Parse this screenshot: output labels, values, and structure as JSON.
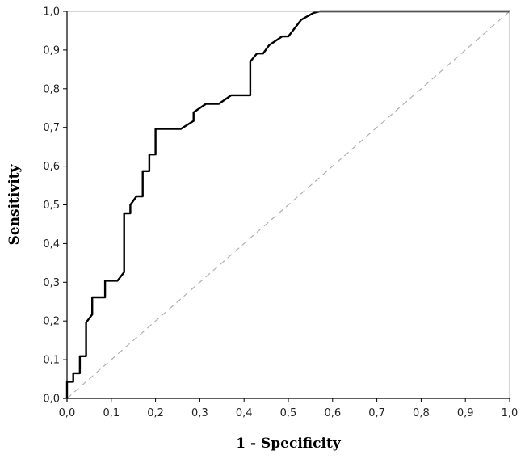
{
  "chart_data": {
    "type": "line",
    "title": "",
    "xlabel": "1 - Specificity",
    "ylabel": "Sensitivity",
    "xlim": [
      0,
      1
    ],
    "ylim": [
      0,
      1
    ],
    "grid": false,
    "legend": "none",
    "x_ticks": [
      "0,0",
      "0,1",
      "0,2",
      "0,3",
      "0,4",
      "0,5",
      "0,6",
      "0,7",
      "0,8",
      "0,9",
      "1,0"
    ],
    "y_ticks": [
      "0,0",
      "0,1",
      "0,2",
      "0,3",
      "0,4",
      "0,5",
      "0,6",
      "0,7",
      "0,8",
      "0,9",
      "1,0"
    ],
    "series": [
      {
        "color": "#000000",
        "points": [
          [
            0.0,
            0.0
          ],
          [
            0.0,
            0.043
          ],
          [
            0.014,
            0.043
          ],
          [
            0.014,
            0.065
          ],
          [
            0.029,
            0.065
          ],
          [
            0.029,
            0.109
          ],
          [
            0.043,
            0.109
          ],
          [
            0.043,
            0.196
          ],
          [
            0.057,
            0.217
          ],
          [
            0.057,
            0.261
          ],
          [
            0.086,
            0.261
          ],
          [
            0.086,
            0.304
          ],
          [
            0.114,
            0.304
          ],
          [
            0.129,
            0.326
          ],
          [
            0.129,
            0.478
          ],
          [
            0.143,
            0.478
          ],
          [
            0.143,
            0.5
          ],
          [
            0.157,
            0.522
          ],
          [
            0.171,
            0.522
          ],
          [
            0.171,
            0.587
          ],
          [
            0.186,
            0.587
          ],
          [
            0.186,
            0.63
          ],
          [
            0.2,
            0.63
          ],
          [
            0.2,
            0.696
          ],
          [
            0.257,
            0.696
          ],
          [
            0.286,
            0.717
          ],
          [
            0.286,
            0.739
          ],
          [
            0.314,
            0.761
          ],
          [
            0.343,
            0.761
          ],
          [
            0.371,
            0.783
          ],
          [
            0.414,
            0.783
          ],
          [
            0.414,
            0.87
          ],
          [
            0.429,
            0.891
          ],
          [
            0.443,
            0.891
          ],
          [
            0.457,
            0.913
          ],
          [
            0.486,
            0.935
          ],
          [
            0.5,
            0.935
          ],
          [
            0.529,
            0.978
          ],
          [
            0.557,
            0.996
          ],
          [
            0.571,
            1.0
          ],
          [
            1.0,
            1.0
          ]
        ]
      },
      {
        "color": "#b0b0b0",
        "style": "dashed",
        "points": [
          [
            0,
            0
          ],
          [
            1,
            1
          ]
        ]
      }
    ]
  }
}
